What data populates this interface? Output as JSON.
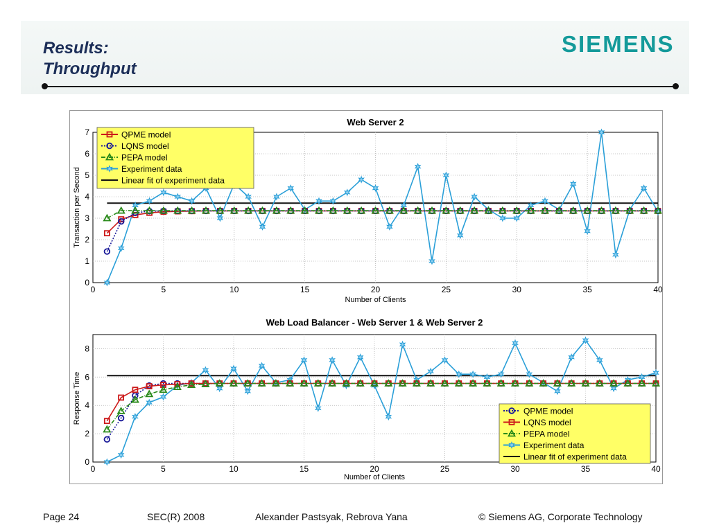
{
  "slide": {
    "title_line1": "Results:",
    "title_line2": "Throughput",
    "logo_text": "SIEMENS"
  },
  "footer": {
    "page": "Page 24",
    "event": "SEC(R) 2008",
    "authors": "Alexander Pastsyak, Rebrova Yana",
    "copyright": "© Siemens AG, Corporate Technology"
  },
  "chart_data": [
    {
      "type": "line",
      "title": "Web Server 2",
      "xlabel": "Number of Clients",
      "ylabel": "Transaction per Second",
      "xlim": [
        0,
        40
      ],
      "ylim": [
        0,
        7
      ],
      "xticks": [
        0,
        5,
        10,
        15,
        20,
        25,
        30,
        35,
        40
      ],
      "yticks": [
        0,
        1,
        2,
        3,
        4,
        5,
        6,
        7
      ],
      "grid": true,
      "legend_position": "top-left",
      "x": [
        1,
        2,
        3,
        4,
        5,
        6,
        7,
        8,
        9,
        10,
        11,
        12,
        13,
        14,
        15,
        16,
        17,
        18,
        19,
        20,
        21,
        22,
        23,
        24,
        25,
        26,
        27,
        28,
        29,
        30,
        31,
        32,
        33,
        34,
        35,
        36,
        37,
        38,
        39,
        40
      ],
      "series": [
        {
          "name": "QPME model",
          "color": "#cc1a1a",
          "marker": "square",
          "dash": "solid",
          "values": [
            2.3,
            2.95,
            3.15,
            3.25,
            3.3,
            3.32,
            3.33,
            3.34,
            3.34,
            3.34,
            3.34,
            3.34,
            3.34,
            3.34,
            3.34,
            3.34,
            3.34,
            3.34,
            3.34,
            3.34,
            3.34,
            3.34,
            3.34,
            3.34,
            3.34,
            3.34,
            3.34,
            3.34,
            3.34,
            3.34,
            3.34,
            3.34,
            3.34,
            3.34,
            3.34,
            3.34,
            3.34,
            3.34,
            3.34,
            3.34
          ]
        },
        {
          "name": "LQNS model",
          "color": "#1a1a99",
          "marker": "circle",
          "dash": "dotted",
          "values": [
            1.45,
            2.85,
            3.25,
            3.33,
            3.34,
            3.34,
            3.34,
            3.34,
            3.34,
            3.34,
            3.34,
            3.34,
            3.34,
            3.34,
            3.34,
            3.34,
            3.34,
            3.34,
            3.34,
            3.34,
            3.34,
            3.34,
            3.34,
            3.34,
            3.34,
            3.34,
            3.34,
            3.34,
            3.34,
            3.34,
            3.34,
            3.34,
            3.34,
            3.34,
            3.34,
            3.34,
            3.34,
            3.34,
            3.34,
            3.34
          ]
        },
        {
          "name": "PEPA model",
          "color": "#2a8a1a",
          "marker": "triangle",
          "dash": "dashdot",
          "values": [
            3.0,
            3.35,
            3.35,
            3.35,
            3.35,
            3.35,
            3.35,
            3.35,
            3.35,
            3.35,
            3.35,
            3.35,
            3.35,
            3.35,
            3.35,
            3.35,
            3.35,
            3.35,
            3.35,
            3.35,
            3.35,
            3.35,
            3.35,
            3.35,
            3.35,
            3.35,
            3.35,
            3.35,
            3.35,
            3.35,
            3.35,
            3.35,
            3.35,
            3.35,
            3.35,
            3.35,
            3.35,
            3.35,
            3.35,
            3.35
          ]
        },
        {
          "name": "Experiment data",
          "color": "#2a9fd8",
          "marker": "star",
          "dash": "solid",
          "values": [
            0,
            1.6,
            3.6,
            3.8,
            4.2,
            4.0,
            3.8,
            4.4,
            3.0,
            4.6,
            4.0,
            2.6,
            4.0,
            4.4,
            3.4,
            3.8,
            3.8,
            4.2,
            4.8,
            4.4,
            2.6,
            3.6,
            5.4,
            1.0,
            5.0,
            2.2,
            4.0,
            3.4,
            3.0,
            3.0,
            3.6,
            3.8,
            3.4,
            4.6,
            2.4,
            7.0,
            1.3,
            3.4,
            4.4,
            3.3
          ]
        },
        {
          "name": "Linear fit of experiment data",
          "color": "#111111",
          "marker": "none",
          "dash": "solid",
          "values": [
            3.7,
            3.7,
            3.7,
            3.7,
            3.7,
            3.7,
            3.7,
            3.7,
            3.7,
            3.7,
            3.7,
            3.7,
            3.7,
            3.7,
            3.7,
            3.7,
            3.7,
            3.7,
            3.7,
            3.7,
            3.7,
            3.7,
            3.7,
            3.7,
            3.7,
            3.7,
            3.7,
            3.7,
            3.7,
            3.7,
            3.7,
            3.7,
            3.7,
            3.7,
            3.7,
            3.7,
            3.7,
            3.7,
            3.7,
            3.7
          ]
        }
      ]
    },
    {
      "type": "line",
      "title": "Web Load Balancer - Web Server 1 & Web Server 2",
      "xlabel": "Number of Clients",
      "ylabel": "Response Time",
      "xlim": [
        0,
        40
      ],
      "ylim": [
        0,
        9
      ],
      "xticks": [
        0,
        5,
        10,
        15,
        20,
        25,
        30,
        35,
        40
      ],
      "yticks": [
        0,
        2,
        4,
        6,
        8
      ],
      "grid": true,
      "legend_position": "bottom-right",
      "x": [
        1,
        2,
        3,
        4,
        5,
        6,
        7,
        8,
        9,
        10,
        11,
        12,
        13,
        14,
        15,
        16,
        17,
        18,
        19,
        20,
        21,
        22,
        23,
        24,
        25,
        26,
        27,
        28,
        29,
        30,
        31,
        32,
        33,
        34,
        35,
        36,
        37,
        38,
        39,
        40
      ],
      "series": [
        {
          "name": "QPME model",
          "color": "#1a1a99",
          "marker": "circle",
          "dash": "dotted",
          "values": [
            1.6,
            3.1,
            4.7,
            5.4,
            5.55,
            5.55,
            5.55,
            5.55,
            5.55,
            5.55,
            5.55,
            5.55,
            5.55,
            5.55,
            5.55,
            5.55,
            5.55,
            5.55,
            5.55,
            5.55,
            5.55,
            5.55,
            5.55,
            5.55,
            5.55,
            5.55,
            5.55,
            5.55,
            5.55,
            5.55,
            5.55,
            5.55,
            5.55,
            5.55,
            5.55,
            5.55,
            5.55,
            5.55,
            5.55,
            5.55
          ]
        },
        {
          "name": "LQNS model",
          "color": "#cc1a1a",
          "marker": "square",
          "dash": "solid",
          "values": [
            2.9,
            4.55,
            5.1,
            5.35,
            5.45,
            5.5,
            5.55,
            5.55,
            5.55,
            5.55,
            5.55,
            5.55,
            5.55,
            5.55,
            5.55,
            5.55,
            5.55,
            5.55,
            5.55,
            5.55,
            5.55,
            5.55,
            5.55,
            5.55,
            5.55,
            5.55,
            5.55,
            5.55,
            5.55,
            5.55,
            5.55,
            5.55,
            5.55,
            5.55,
            5.55,
            5.55,
            5.55,
            5.55,
            5.55,
            5.55
          ]
        },
        {
          "name": "PEPA model",
          "color": "#2a8a1a",
          "marker": "triangle",
          "dash": "dashdot",
          "values": [
            2.3,
            3.6,
            4.4,
            4.8,
            5.1,
            5.3,
            5.45,
            5.5,
            5.55,
            5.55,
            5.55,
            5.55,
            5.55,
            5.55,
            5.55,
            5.55,
            5.55,
            5.55,
            5.55,
            5.55,
            5.55,
            5.55,
            5.55,
            5.55,
            5.55,
            5.55,
            5.55,
            5.55,
            5.55,
            5.55,
            5.55,
            5.55,
            5.55,
            5.55,
            5.55,
            5.55,
            5.55,
            5.55,
            5.55,
            5.55
          ]
        },
        {
          "name": "Experiment data",
          "color": "#2a9fd8",
          "marker": "star",
          "dash": "solid",
          "values": [
            0,
            0.5,
            3.2,
            4.2,
            4.6,
            5.4,
            5.6,
            6.5,
            5.2,
            6.6,
            5.0,
            6.8,
            5.6,
            5.8,
            7.2,
            3.8,
            7.2,
            5.4,
            7.4,
            5.4,
            3.2,
            8.3,
            5.8,
            6.4,
            7.2,
            6.2,
            6.2,
            6.0,
            6.2,
            8.4,
            6.2,
            5.6,
            5.0,
            7.4,
            8.6,
            7.2,
            5.2,
            5.8,
            6.0,
            6.3
          ]
        },
        {
          "name": "Linear fit of experiment data",
          "color": "#111111",
          "marker": "none",
          "dash": "solid",
          "values": [
            6.1,
            6.1,
            6.1,
            6.1,
            6.1,
            6.1,
            6.1,
            6.1,
            6.1,
            6.1,
            6.1,
            6.1,
            6.1,
            6.1,
            6.1,
            6.1,
            6.1,
            6.1,
            6.1,
            6.1,
            6.1,
            6.1,
            6.1,
            6.1,
            6.1,
            6.1,
            6.1,
            6.1,
            6.1,
            6.1,
            6.1,
            6.1,
            6.1,
            6.1,
            6.1,
            6.1,
            6.1,
            6.1,
            6.1,
            6.1
          ]
        }
      ]
    }
  ]
}
